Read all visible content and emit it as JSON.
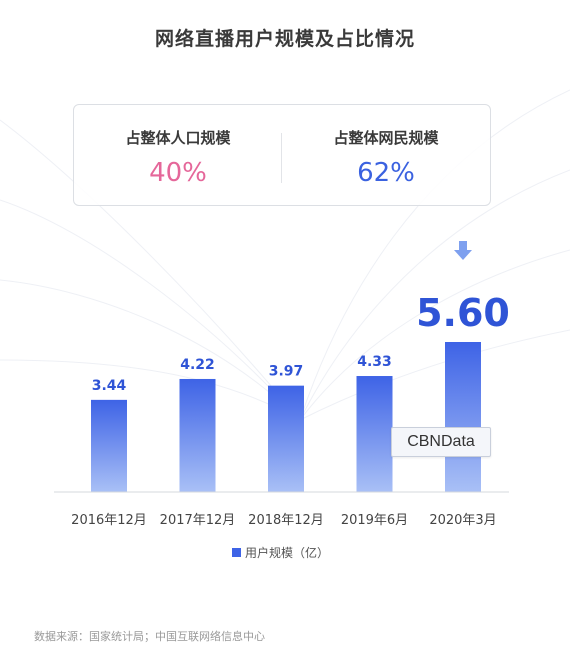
{
  "title": "网络直播用户规模及占比情况",
  "stats": [
    {
      "label": "占整体人口规模",
      "value": "40%",
      "color": "#e5679a"
    },
    {
      "label": "占整体网民规模",
      "value": "62%",
      "color": "#3b62e0"
    }
  ],
  "chart_data": {
    "type": "bar",
    "title": "",
    "xlabel": "",
    "ylabel": "",
    "categories": [
      "2016年12月",
      "2017年12月",
      "2018年12月",
      "2019年6月",
      "2020年3月"
    ],
    "series": [
      {
        "name": "用户规模（亿）",
        "values": [
          3.44,
          4.22,
          3.97,
          4.33,
          5.6
        ]
      }
    ],
    "data_labels": [
      "3.44",
      "4.22",
      "3.97",
      "4.33",
      "5.60"
    ],
    "highlight_index": 4,
    "legend_position": "bottom",
    "grid": false,
    "colors": {
      "bar_top": "#3e63e6",
      "bar_bottom": "#a9c0f6",
      "label": "#2f54d6"
    }
  },
  "source": "数据来源：国家统计局；中国互联网络信息中心",
  "watermark": "CBNData",
  "icons": {
    "highlight": "down-arrow-icon",
    "legend": "square-icon"
  }
}
